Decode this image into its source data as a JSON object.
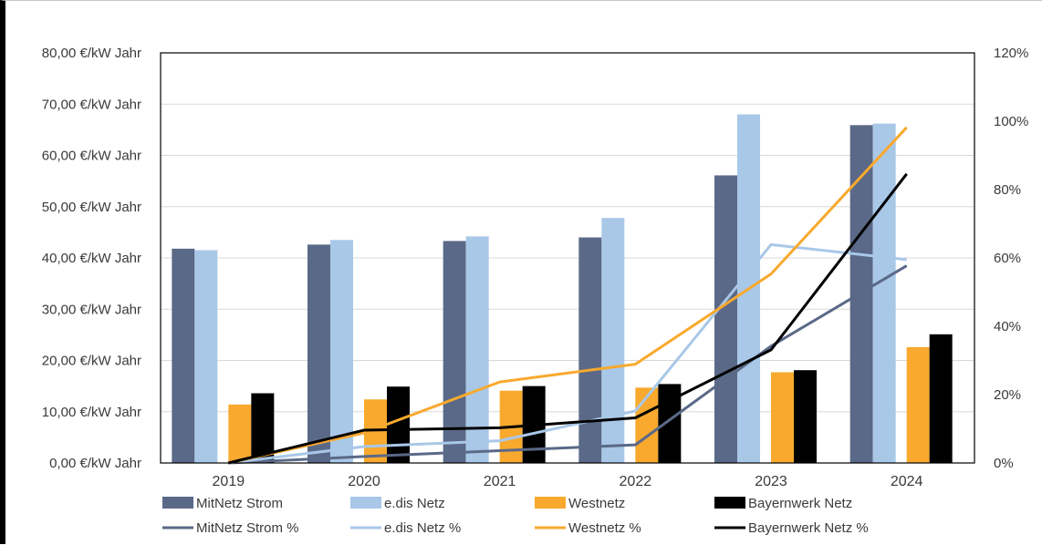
{
  "chart_data": {
    "type": "bar",
    "categories": [
      "2019",
      "2020",
      "2021",
      "2022",
      "2023",
      "2024"
    ],
    "y_left": {
      "ticks": [
        "0,00 €/kW Jahr",
        "10,00 €/kW Jahr",
        "20,00 €/kW Jahr",
        "30,00 €/kW Jahr",
        "40,00 €/kW Jahr",
        "50,00 €/kW Jahr",
        "60,00 €/kW Jahr",
        "70,00 €/kW Jahr",
        "80,00 €/kW Jahr"
      ],
      "ylim": [
        0,
        80
      ]
    },
    "y_right": {
      "ticks": [
        "0%",
        "20%",
        "40%",
        "60%",
        "80%",
        "100%",
        "120%"
      ],
      "ylim": [
        0,
        120
      ]
    },
    "bar_series": [
      {
        "name": "MitNetz Strom",
        "color": "#5a6987",
        "values": [
          41.8,
          42.6,
          43.3,
          44.0,
          56.1,
          65.9
        ]
      },
      {
        "name": "e.dis Netz",
        "color": "#a9c8e8",
        "values": [
          41.5,
          43.5,
          44.2,
          47.8,
          68.0,
          66.2
        ]
      },
      {
        "name": "Westnetz",
        "color": "#f8a92e",
        "values": [
          11.4,
          12.4,
          14.1,
          14.7,
          17.7,
          22.6
        ]
      },
      {
        "name": "Bayernwerk Netz",
        "color": "#000000",
        "values": [
          13.6,
          14.9,
          15.0,
          15.4,
          18.1,
          25.1
        ]
      }
    ],
    "line_series": [
      {
        "name": "MitNetz Strom %",
        "color": "#5a6987",
        "values": [
          0,
          1.9,
          3.6,
          5.3,
          34.2,
          57.7
        ]
      },
      {
        "name": "e.dis Netz %",
        "color": "#a9c8e8",
        "values": [
          0,
          4.8,
          6.5,
          15.2,
          63.9,
          59.5
        ]
      },
      {
        "name": "Westnetz %",
        "color": "#f8a92e",
        "values": [
          0,
          8.8,
          23.7,
          28.9,
          55.3,
          98.2
        ]
      },
      {
        "name": "Bayernwerk Netz %",
        "color": "#000000",
        "values": [
          0,
          9.6,
          10.3,
          13.2,
          33.1,
          84.6
        ]
      }
    ],
    "legend_placement": "bottom",
    "grid": true
  }
}
